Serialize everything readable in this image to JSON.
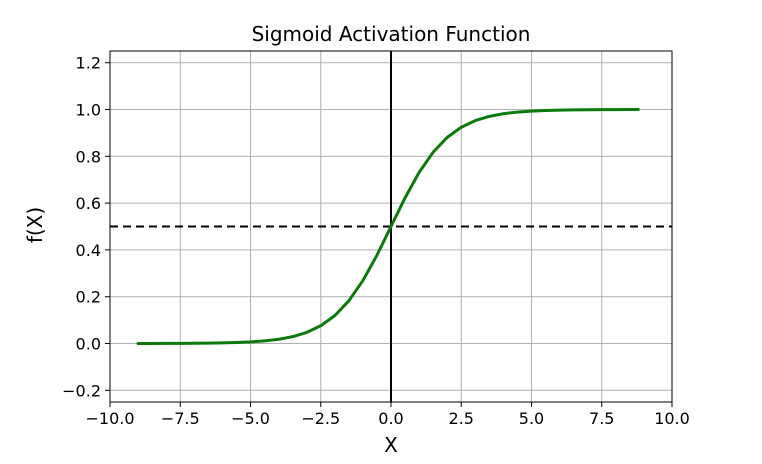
{
  "chart_data": {
    "type": "line",
    "title": "Sigmoid Activation Function",
    "xlabel": "X",
    "ylabel": "f(X)",
    "xlim": [
      -10.0,
      10.0
    ],
    "ylim": [
      -0.25,
      1.25
    ],
    "xticks": [
      -10.0,
      -7.5,
      -5.0,
      -2.5,
      0.0,
      2.5,
      5.0,
      7.5,
      10.0
    ],
    "xtick_labels": [
      "−10.0",
      "−7.5",
      "−5.0",
      "−2.5",
      "0.0",
      "2.5",
      "5.0",
      "7.5",
      "10.0"
    ],
    "yticks": [
      -0.2,
      0.0,
      0.2,
      0.4,
      0.6,
      0.8,
      1.0,
      1.2
    ],
    "ytick_labels": [
      "−0.2",
      "0.0",
      "0.2",
      "0.4",
      "0.6",
      "0.8",
      "1.0",
      "1.2"
    ],
    "grid": true,
    "series": [
      {
        "color": "#0a7a0a",
        "x": [
          -9.0,
          -8.5,
          -8.0,
          -7.5,
          -7.0,
          -6.5,
          -6.0,
          -5.5,
          -5.0,
          -4.5,
          -4.0,
          -3.5,
          -3.0,
          -2.5,
          -2.0,
          -1.5,
          -1.0,
          -0.5,
          0.0,
          0.5,
          1.0,
          1.5,
          2.0,
          2.5,
          3.0,
          3.5,
          4.0,
          4.5,
          5.0,
          5.5,
          6.0,
          6.5,
          7.0,
          7.5,
          8.0,
          8.5,
          8.8
        ],
        "y": [
          0.0001,
          0.0002,
          0.0003,
          0.0006,
          0.0009,
          0.0015,
          0.0025,
          0.0041,
          0.0067,
          0.011,
          0.018,
          0.0293,
          0.0474,
          0.0759,
          0.1192,
          0.1824,
          0.2689,
          0.3775,
          0.5,
          0.6225,
          0.7311,
          0.8176,
          0.8808,
          0.9241,
          0.9526,
          0.9707,
          0.982,
          0.989,
          0.9933,
          0.9959,
          0.9975,
          0.9985,
          0.9991,
          0.9994,
          0.9997,
          0.9998,
          0.9998
        ]
      }
    ],
    "reference_lines": [
      {
        "orientation": "horizontal",
        "value": 0.5,
        "style": "dashed",
        "color": "#000000"
      },
      {
        "orientation": "vertical",
        "value": 0.0,
        "style": "solid",
        "color": "#000000"
      }
    ]
  }
}
